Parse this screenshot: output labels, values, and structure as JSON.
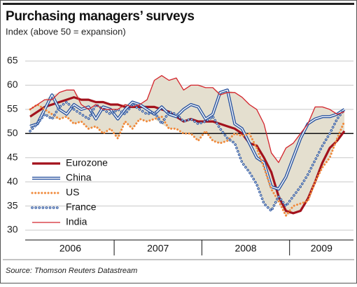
{
  "chart_data": {
    "type": "line",
    "title": "Purchasing managers’ surveys",
    "subtitle": "Index (above 50 = expansion)",
    "source": "Source: Thomson Reuters Datastream",
    "year_labels": [
      "2006",
      "2007",
      "2008",
      "2009"
    ],
    "months_per_year": 12,
    "ylim": [
      30,
      65
    ],
    "yticks": [
      30,
      35,
      40,
      45,
      50,
      55,
      60,
      65
    ],
    "grid": true,
    "reference_line": 50,
    "band": true,
    "series": [
      {
        "name": "Eurozone",
        "color": "#a3121c",
        "style": "thick",
        "values": [
          53.5,
          54.5,
          55.5,
          56,
          56.5,
          57,
          57.5,
          57,
          57,
          56.5,
          56.5,
          56,
          56,
          55.5,
          55.5,
          55.5,
          55.5,
          55.5,
          55,
          54.5,
          53.5,
          52.5,
          53,
          52.5,
          52.5,
          52.5,
          52,
          51.5,
          51,
          50,
          48,
          47.5,
          45,
          42,
          37,
          34,
          33.5,
          34,
          36.5,
          40,
          44,
          47,
          48.5,
          50.5
        ]
      },
      {
        "name": "China",
        "color": "#2b55a0",
        "style": "double",
        "values": [
          51.5,
          52,
          55,
          58,
          55,
          54,
          56,
          55,
          55.5,
          53,
          55.5,
          55,
          53,
          55,
          56.5,
          56,
          55,
          54,
          55.5,
          54,
          53.5,
          55,
          56,
          55.5,
          53,
          54,
          58.5,
          59,
          52,
          51,
          48,
          45,
          44,
          39,
          38.5,
          41,
          45,
          49,
          52,
          53,
          53.5,
          53.5,
          54,
          55
        ]
      },
      {
        "name": "US",
        "color": "#f08a3c",
        "style": "dotted",
        "values": [
          55,
          56,
          55,
          54,
          53,
          53.5,
          52,
          52.5,
          51,
          51.5,
          50,
          51,
          49,
          52.5,
          51,
          53,
          52.5,
          53,
          53.5,
          51,
          51,
          50,
          50,
          48.5,
          50.5,
          48.5,
          48,
          48.5,
          50,
          49.5,
          50,
          47,
          43,
          38.5,
          36,
          33,
          35,
          35.5,
          36,
          40,
          43,
          45,
          49,
          52.5
        ]
      },
      {
        "name": "France",
        "color": "#2b55a0",
        "style": "double-dotted",
        "values": [
          50.5,
          52,
          54,
          53,
          55.5,
          56.5,
          55,
          54,
          53,
          56,
          55,
          54,
          55,
          54,
          56,
          55,
          54,
          54.5,
          52,
          54.5,
          54,
          52.5,
          53,
          52,
          52.5,
          53.5,
          51,
          49,
          48,
          44,
          42,
          39.5,
          35.5,
          34,
          37,
          35,
          37,
          39,
          41.5,
          44.5,
          47.5,
          50,
          53,
          55
        ]
      },
      {
        "name": "India",
        "color": "#d3242c",
        "style": "thin",
        "values": [
          55,
          56,
          57,
          57,
          58.5,
          59,
          59,
          56,
          55,
          56,
          55,
          55,
          55,
          56,
          55.5,
          56,
          57,
          61,
          62,
          61,
          61.5,
          59,
          60,
          60,
          59.5,
          59.5,
          58,
          58.5,
          58.5,
          57.5,
          56,
          55,
          52,
          46,
          44,
          47,
          48,
          50,
          52,
          55.5,
          55.5,
          55,
          54,
          54.5
        ]
      }
    ]
  }
}
